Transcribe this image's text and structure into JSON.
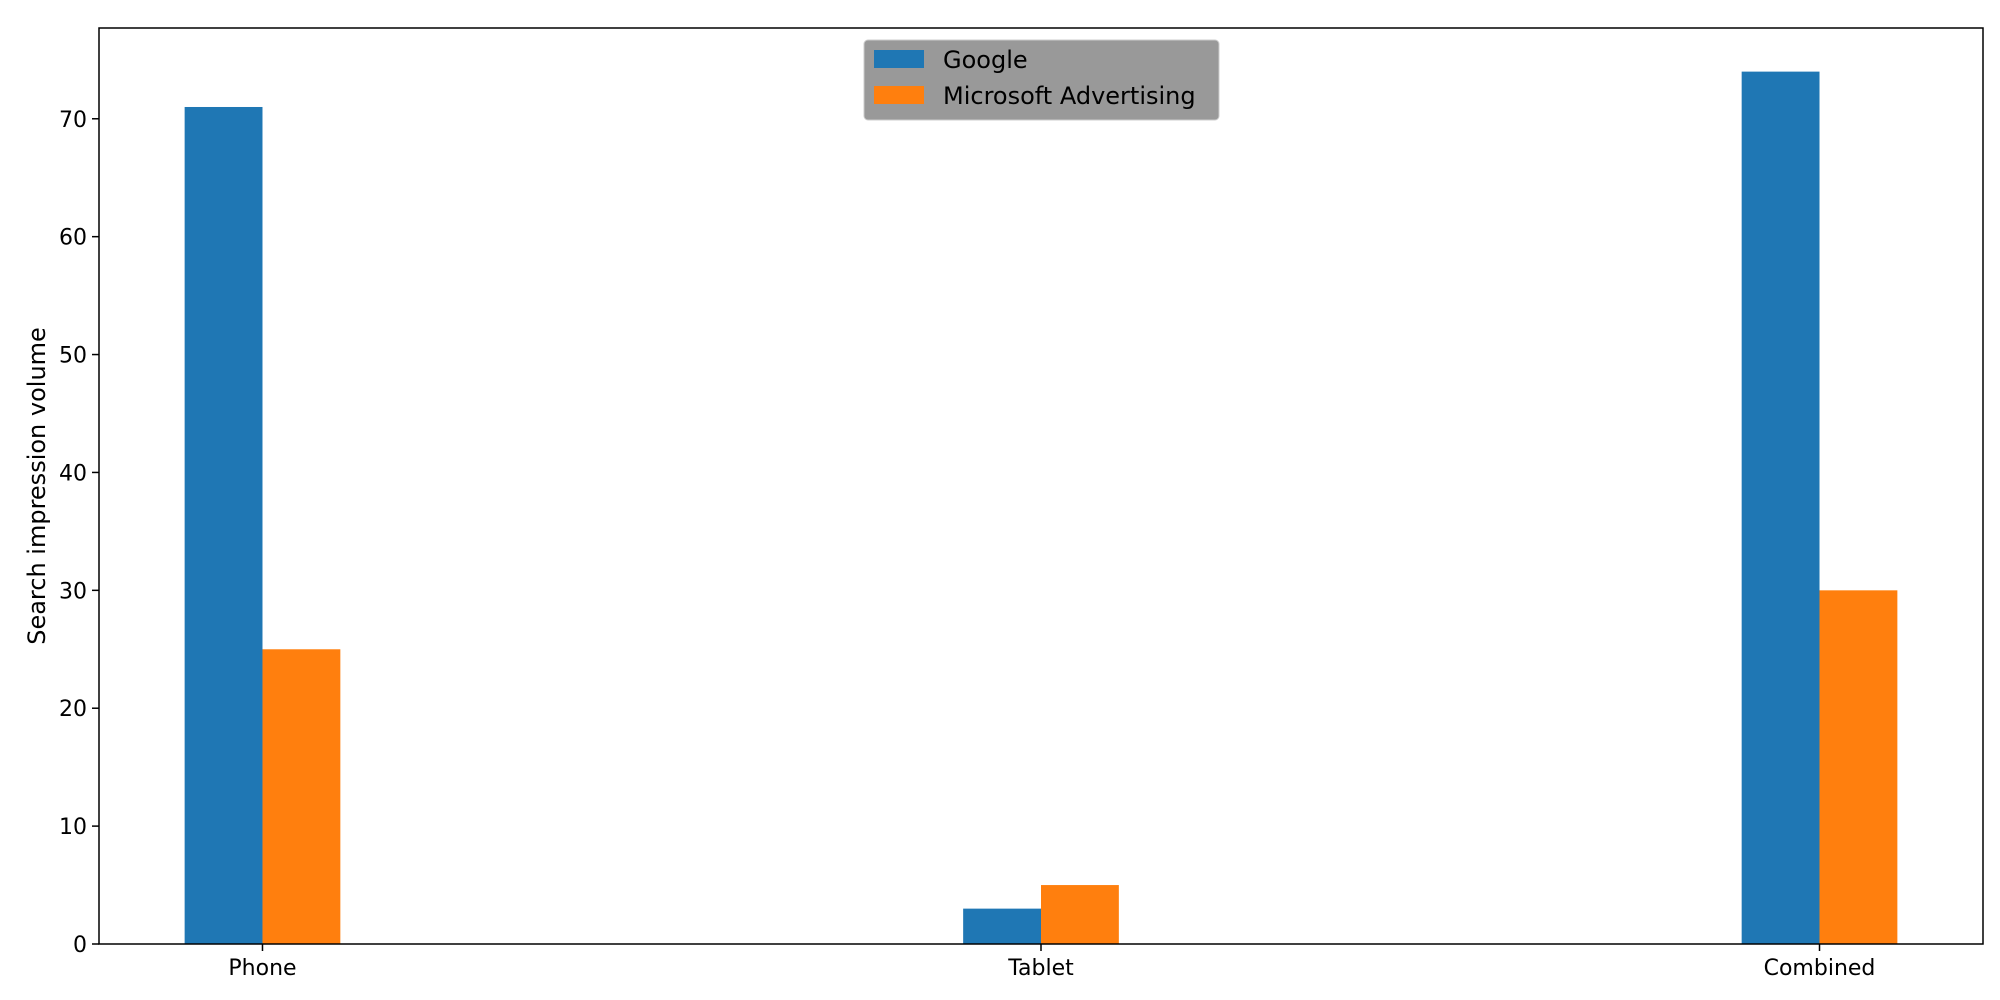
{
  "chart_data": {
    "type": "bar",
    "categories": [
      "Phone",
      "Tablet",
      "Combined"
    ],
    "series": [
      {
        "name": "Google",
        "values": [
          71,
          3,
          74
        ],
        "color": "#1f77b4"
      },
      {
        "name": "Microsoft Advertising",
        "values": [
          25,
          5,
          30
        ],
        "color": "#ff7f0e"
      }
    ],
    "title": "",
    "xlabel": "",
    "ylabel": "Search impression volume",
    "ylim": [
      0,
      77.7
    ],
    "yticks": [
      0,
      10,
      20,
      30,
      40,
      50,
      60,
      70
    ],
    "grid": false,
    "legend_position": "top-center",
    "legend_background": "#999999"
  }
}
